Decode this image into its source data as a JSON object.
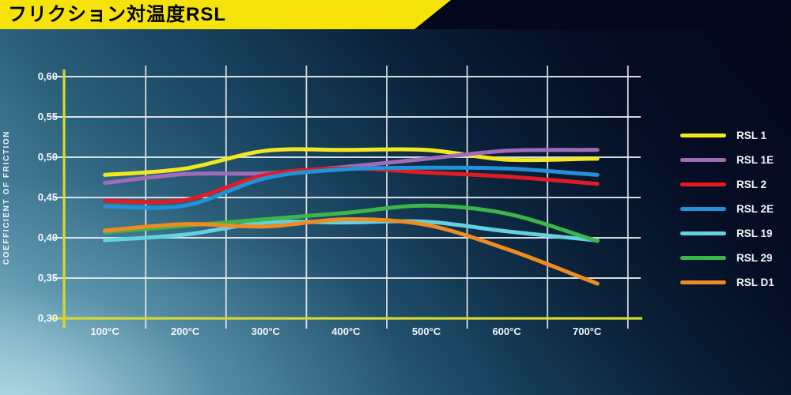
{
  "header": {
    "title": "フリクション対温度RSL",
    "banner_color": "#f6e30a",
    "strip_color": "#04081c",
    "title_text_color": "#000000"
  },
  "chart_data": {
    "type": "line",
    "title": "フリクション対温度RSL",
    "ylabel": "COEFFICIENT OF FRICTION",
    "xlabel": "",
    "x_values_celsius": [
      100,
      200,
      300,
      400,
      500,
      600,
      700
    ],
    "x_tick_labels": [
      "100°C",
      "200°C",
      "300°C",
      "400°C",
      "500°C",
      "600°C",
      "700°C"
    ],
    "y_tick_labels": [
      "0,60",
      "0,55",
      "0,50",
      "0,45",
      "0,40",
      "0,35",
      "0,30"
    ],
    "ylim": [
      0.3,
      0.6
    ],
    "y_step": 0.05,
    "grid": true,
    "legend_position": "right",
    "axis_color": "#d6d92f",
    "grid_color": "#e9f0f4",
    "series": [
      {
        "name": "RSL 1",
        "color": "#f2e821",
        "values": [
          0.478,
          0.486,
          0.508,
          0.509,
          0.509,
          0.497,
          0.498
        ]
      },
      {
        "name": "RSL 1E",
        "color": "#9e6cb8",
        "values": [
          0.468,
          0.479,
          0.48,
          0.488,
          0.498,
          0.508,
          0.509
        ]
      },
      {
        "name": "RSL 2",
        "color": "#e31b23",
        "values": [
          0.446,
          0.447,
          0.478,
          0.486,
          0.481,
          0.476,
          0.468
        ]
      },
      {
        "name": "RSL 2E",
        "color": "#2292d8",
        "values": [
          0.439,
          0.44,
          0.474,
          0.485,
          0.487,
          0.486,
          0.479
        ]
      },
      {
        "name": "RSL 19",
        "color": "#63d1de",
        "values": [
          0.397,
          0.404,
          0.419,
          0.419,
          0.42,
          0.408,
          0.398
        ]
      },
      {
        "name": "RSL 29",
        "color": "#3cb54a",
        "values": [
          0.407,
          0.415,
          0.423,
          0.431,
          0.44,
          0.43,
          0.4
        ]
      },
      {
        "name": "RSL D1",
        "color": "#f08b22",
        "values": [
          0.409,
          0.417,
          0.414,
          0.423,
          0.416,
          0.386,
          0.348
        ]
      }
    ]
  }
}
